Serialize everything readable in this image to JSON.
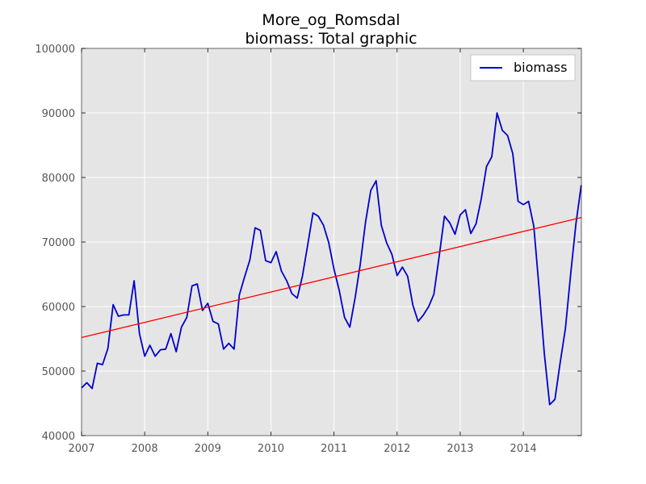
{
  "chart_data": {
    "type": "line",
    "title": "More_og_Romsdal",
    "subtitle": "biomass: Total graphic",
    "xlabel": "",
    "ylabel": "",
    "xlim": [
      2007.0,
      2014.92
    ],
    "ylim": [
      40000,
      100000
    ],
    "x_ticks": [
      "2007",
      "2008",
      "2009",
      "2010",
      "2011",
      "2012",
      "2013",
      "2014"
    ],
    "y_ticks": [
      "40000",
      "50000",
      "60000",
      "70000",
      "80000",
      "90000",
      "100000"
    ],
    "grid": true,
    "legend": "top-right",
    "series": [
      {
        "name": "biomass",
        "color": "#0000cc",
        "x": [
          2007.0,
          2007.083,
          2007.167,
          2007.25,
          2007.333,
          2007.417,
          2007.5,
          2007.583,
          2007.667,
          2007.75,
          2007.833,
          2007.917,
          2008.0,
          2008.083,
          2008.167,
          2008.25,
          2008.333,
          2008.417,
          2008.5,
          2008.583,
          2008.667,
          2008.75,
          2008.833,
          2008.917,
          2009.0,
          2009.083,
          2009.167,
          2009.25,
          2009.333,
          2009.417,
          2009.5,
          2009.583,
          2009.667,
          2009.75,
          2009.833,
          2009.917,
          2010.0,
          2010.083,
          2010.167,
          2010.25,
          2010.333,
          2010.417,
          2010.5,
          2010.583,
          2010.667,
          2010.75,
          2010.833,
          2010.917,
          2011.0,
          2011.083,
          2011.167,
          2011.25,
          2011.333,
          2011.417,
          2011.5,
          2011.583,
          2011.667,
          2011.75,
          2011.833,
          2011.917,
          2012.0,
          2012.083,
          2012.167,
          2012.25,
          2012.333,
          2012.417,
          2012.5,
          2012.583,
          2012.667,
          2012.75,
          2012.833,
          2012.917,
          2013.0,
          2013.083,
          2013.167,
          2013.25,
          2013.333,
          2013.417,
          2013.5,
          2013.583,
          2013.667,
          2013.75,
          2013.833,
          2013.917,
          2014.0,
          2014.083,
          2014.167,
          2014.25,
          2014.333,
          2014.417,
          2014.5,
          2014.583,
          2014.667,
          2014.75,
          2014.833,
          2014.917
        ],
        "values": [
          47400,
          48200,
          47300,
          51200,
          51000,
          53500,
          60300,
          58500,
          58700,
          58700,
          64000,
          55800,
          52300,
          54000,
          52300,
          53300,
          53400,
          55800,
          53000,
          56800,
          58300,
          63200,
          63500,
          59400,
          60500,
          57700,
          57300,
          53400,
          54300,
          53400,
          61800,
          64600,
          67200,
          72200,
          71800,
          67100,
          66800,
          68500,
          65500,
          64000,
          62000,
          61300,
          64700,
          69500,
          74500,
          74000,
          72600,
          69900,
          65800,
          62500,
          58300,
          56800,
          61300,
          66600,
          73100,
          78000,
          79500,
          72600,
          69900,
          68100,
          64800,
          66100,
          64700,
          60200,
          57700,
          58700,
          60000,
          61900,
          67800,
          74000,
          73000,
          71200,
          74200,
          75000,
          71300,
          72800,
          76700,
          81700,
          83200,
          90000,
          87300,
          86500,
          83700,
          76300,
          75800,
          76300,
          72400,
          62800,
          52700,
          44800,
          45600,
          51300,
          56600,
          65000,
          72800,
          78800
        ]
      },
      {
        "name": "",
        "color": "#ff0000",
        "x": [
          2007.0,
          2014.92
        ],
        "values": [
          55200,
          73800
        ]
      }
    ]
  }
}
